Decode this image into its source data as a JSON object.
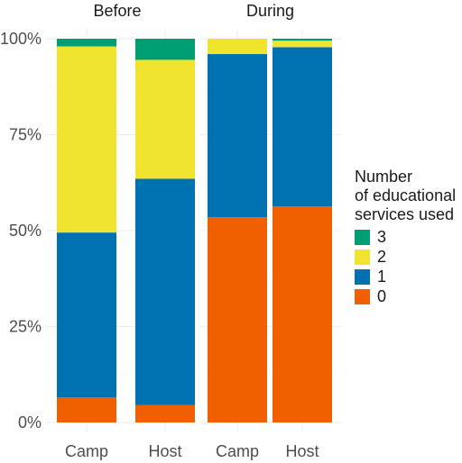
{
  "chart_data": {
    "type": "bar",
    "stacked": "percent",
    "panels": [
      {
        "title": "Before",
        "categories": [
          "Camp",
          "Host"
        ],
        "series": [
          {
            "name": "0",
            "values": [
              6.5,
              4.5
            ]
          },
          {
            "name": "1",
            "values": [
              43,
              59
            ]
          },
          {
            "name": "2",
            "values": [
              48.5,
              31
            ]
          },
          {
            "name": "3",
            "values": [
              2,
              5.5
            ]
          }
        ]
      },
      {
        "title": "During",
        "categories": [
          "Camp",
          "Host"
        ],
        "series": [
          {
            "name": "0",
            "values": [
              53.5,
              56.3
            ]
          },
          {
            "name": "1",
            "values": [
              42.5,
              41.5
            ]
          },
          {
            "name": "2",
            "values": [
              4,
              1.7
            ]
          },
          {
            "name": "3",
            "values": [
              0,
              0.5
            ]
          }
        ]
      }
    ],
    "ylim": [
      0,
      100
    ],
    "y_ticks": [
      "0%",
      "25%",
      "50%",
      "75%",
      "100%"
    ],
    "y_tick_values": [
      0,
      25,
      50,
      75,
      100
    ],
    "xlabel": "",
    "ylabel": "",
    "grid": true,
    "legend": {
      "title": "Number\nof educational\nservices used",
      "entries": [
        "3",
        "2",
        "1",
        "0"
      ],
      "placement": "right"
    },
    "colors": {
      "0": "#F05F00",
      "1": "#0072B2",
      "2": "#F0E42E",
      "3": "#009E73"
    }
  }
}
